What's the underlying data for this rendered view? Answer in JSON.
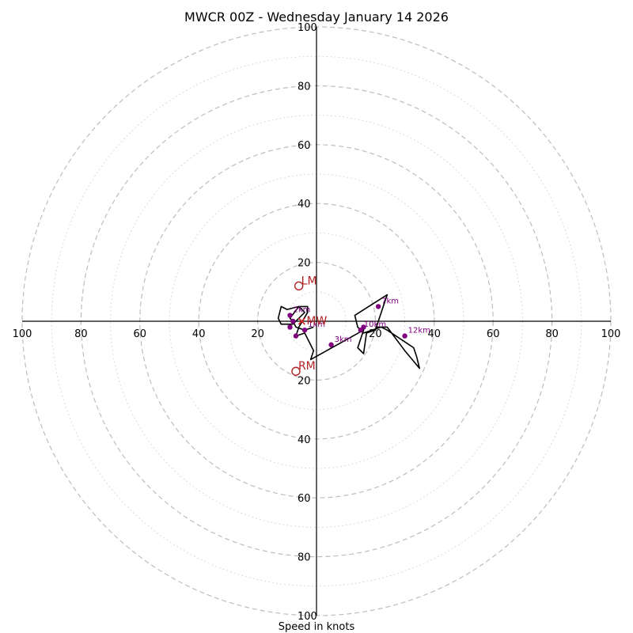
{
  "chart_data": {
    "type": "scatter",
    "subtype": "hodograph",
    "title": "MWCR 00Z - Wednesday January 14 2026",
    "xlabel": "Speed in knots",
    "units": "knots",
    "range": [
      -100,
      100
    ],
    "major_rings": [
      20,
      40,
      60,
      80,
      100
    ],
    "minor_rings": [
      10,
      30,
      50,
      70,
      90
    ],
    "x_tick_labels": [
      "100",
      "80",
      "60",
      "40",
      "20",
      "20",
      "40",
      "60",
      "80",
      "100"
    ],
    "x_tick_values": [
      -100,
      -80,
      -60,
      -40,
      -20,
      20,
      40,
      60,
      80,
      100
    ],
    "y_tick_labels": [
      "100",
      "80",
      "60",
      "40",
      "20",
      "20",
      "40",
      "60",
      "80",
      "100"
    ],
    "y_tick_values": [
      100,
      80,
      60,
      40,
      20,
      -20,
      -40,
      -60,
      -80,
      -100
    ],
    "trace_color": "#000000",
    "height_point_color": "#800080",
    "storm_color": "#b22222",
    "trace": [
      [
        -1,
        -2
      ],
      [
        -4,
        -3
      ],
      [
        -7,
        -2
      ],
      [
        -8,
        0
      ],
      [
        -9,
        1
      ],
      [
        -6,
        5
      ],
      [
        -4,
        3
      ],
      [
        -8,
        -1
      ],
      [
        -12,
        -1
      ],
      [
        -13,
        1
      ],
      [
        -12,
        5
      ],
      [
        -10,
        4
      ],
      [
        -6,
        5
      ],
      [
        -3,
        5
      ],
      [
        -3,
        3
      ],
      [
        -6,
        -2
      ],
      [
        -7,
        -5
      ],
      [
        -4,
        -4
      ],
      [
        -1,
        -10
      ],
      [
        -2,
        -13
      ],
      [
        16,
        -3
      ],
      [
        14,
        -9
      ],
      [
        16,
        -11
      ],
      [
        17,
        -4
      ],
      [
        20,
        -3
      ],
      [
        24,
        9
      ],
      [
        13,
        2
      ],
      [
        14,
        -2
      ],
      [
        16,
        -4
      ],
      [
        22,
        -2
      ],
      [
        24,
        -3
      ],
      [
        33,
        -9
      ],
      [
        34,
        -12
      ],
      [
        35,
        -16
      ],
      [
        30,
        -10
      ],
      [
        24,
        -2
      ],
      [
        20,
        -2
      ]
    ],
    "height_points": [
      {
        "x": -4,
        "y": -3,
        "label": "1km"
      },
      {
        "x": 5,
        "y": -8,
        "label": "3km"
      },
      {
        "x": 21,
        "y": 5,
        "label": "7km"
      },
      {
        "x": 15,
        "y": -3,
        "label": "10km"
      },
      {
        "x": 16,
        "y": -2,
        "label": ""
      },
      {
        "x": 30,
        "y": -5,
        "label": "12km"
      },
      {
        "x": -9,
        "y": 2,
        "label": "2km"
      },
      {
        "x": -8,
        "y": 0,
        "label": ""
      },
      {
        "x": -7,
        "y": -5,
        "label": ""
      },
      {
        "x": -9,
        "y": -2,
        "label": ""
      }
    ],
    "storm_motion": [
      {
        "label": "LM",
        "x": -6,
        "y": 12
      },
      {
        "label": "RM",
        "x": -7,
        "y": -17
      },
      {
        "label": "MW",
        "x": -5,
        "y": 0
      }
    ]
  }
}
